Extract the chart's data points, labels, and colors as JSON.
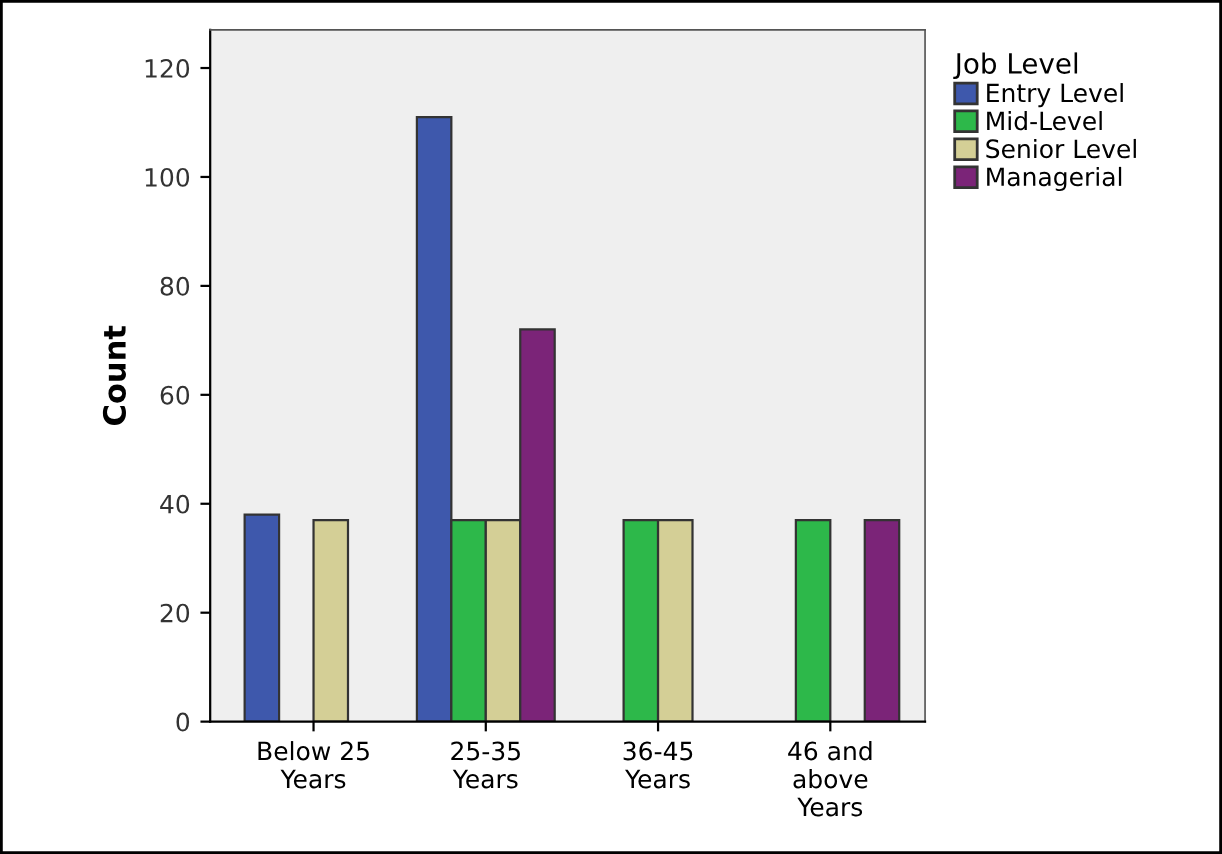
{
  "chart_data": {
    "type": "bar",
    "ylabel": "Count",
    "legend_title": "Job Level",
    "categories": [
      "Below 25\nYears",
      "25-35\nYears",
      "36-45\nYears",
      "46 and\nabove\nYears"
    ],
    "series": [
      {
        "name": "Entry Level",
        "color": "#3e58ac",
        "values": [
          38,
          111,
          null,
          null
        ]
      },
      {
        "name": "Mid-Level",
        "color": "#2db84a",
        "values": [
          null,
          37,
          37,
          37
        ]
      },
      {
        "name": "Senior Level",
        "color": "#d4cf96",
        "values": [
          37,
          37,
          37,
          null
        ]
      },
      {
        "name": "Managerial",
        "color": "#7b2478",
        "values": [
          null,
          72,
          null,
          37
        ]
      }
    ],
    "ylim": [
      0,
      127
    ],
    "yticks": [
      0,
      20,
      40,
      60,
      80,
      100,
      120
    ],
    "grid": false,
    "legend": "top right"
  }
}
